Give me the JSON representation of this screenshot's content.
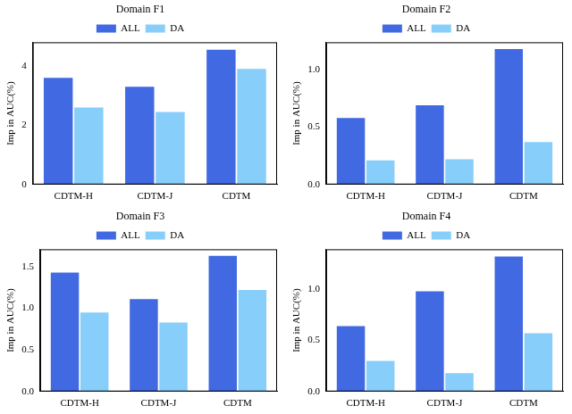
{
  "chart_data": [
    {
      "type": "bar",
      "title": "Domain F1",
      "y_label": "Imp in AUC(%)",
      "categories": [
        "CDTM-H",
        "CDTM-J",
        "CDTM"
      ],
      "series": [
        {
          "name": "ALL",
          "color": "#4169e1",
          "values": [
            3.6,
            3.3,
            4.55
          ]
        },
        {
          "name": "DA",
          "color": "#87cefa",
          "values": [
            2.6,
            2.45,
            3.9
          ]
        }
      ],
      "ylim": [
        0,
        4.8
      ],
      "yticks": [
        0,
        2,
        4
      ],
      "grid": false,
      "legend": "top"
    },
    {
      "type": "bar",
      "title": "Domain F2",
      "y_label": "Imp in AUC(%)",
      "categories": [
        "CDTM-H",
        "CDTM-J",
        "CDTM"
      ],
      "series": [
        {
          "name": "ALL",
          "color": "#4169e1",
          "values": [
            0.58,
            0.69,
            1.18
          ]
        },
        {
          "name": "DA",
          "color": "#87cefa",
          "values": [
            0.21,
            0.22,
            0.37
          ]
        }
      ],
      "ylim": [
        0,
        1.24
      ],
      "yticks": [
        {
          "value": 0,
          "label": "0.0"
        },
        {
          "value": 0.5,
          "label": "0.5"
        },
        {
          "value": 1,
          "label": "1.0"
        }
      ],
      "grid": false,
      "legend": "top"
    },
    {
      "type": "bar",
      "title": "Domain F3",
      "y_label": "Imp in AUC(%)",
      "categories": [
        "CDTM-H",
        "CDTM-J",
        "CDTM"
      ],
      "series": [
        {
          "name": "ALL",
          "color": "#4169e1",
          "values": [
            1.43,
            1.11,
            1.63
          ]
        },
        {
          "name": "DA",
          "color": "#87cefa",
          "values": [
            0.95,
            0.83,
            1.22
          ]
        }
      ],
      "ylim": [
        0,
        1.71
      ],
      "yticks": [
        {
          "value": 0,
          "label": "0.0"
        },
        {
          "value": 0.5,
          "label": "0.5"
        },
        {
          "value": 1,
          "label": "1.0"
        },
        {
          "value": 1.5,
          "label": "1.5"
        }
      ],
      "grid": false,
      "legend": "top"
    },
    {
      "type": "bar",
      "title": "Domain F4",
      "y_label": "Imp in AUC(%)",
      "categories": [
        "CDTM-H",
        "CDTM-J",
        "CDTM"
      ],
      "series": [
        {
          "name": "ALL",
          "color": "#4169e1",
          "values": [
            0.64,
            0.98,
            1.32
          ]
        },
        {
          "name": "DA",
          "color": "#87cefa",
          "values": [
            0.3,
            0.18,
            0.57
          ]
        }
      ],
      "ylim": [
        0,
        1.39
      ],
      "yticks": [
        {
          "value": 0,
          "label": "0.0"
        },
        {
          "value": 0.5,
          "label": "0.5"
        },
        {
          "value": 1,
          "label": "1.0"
        }
      ],
      "grid": false,
      "legend": "top"
    }
  ]
}
